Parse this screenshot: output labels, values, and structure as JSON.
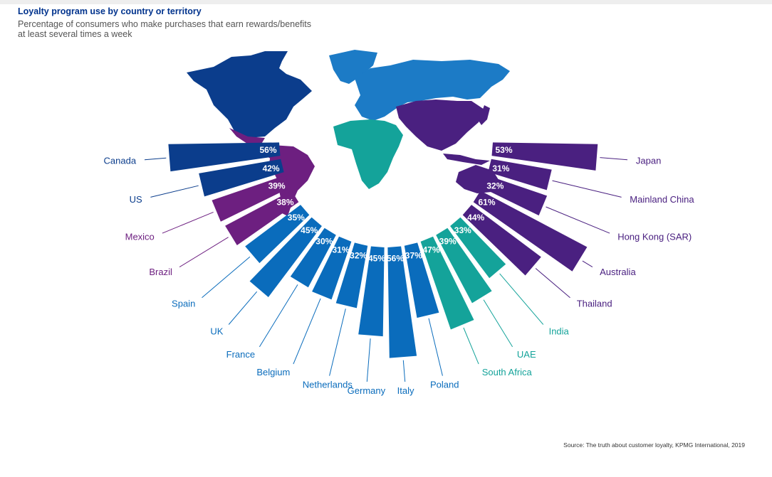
{
  "title": "Loyalty program use by country or territory",
  "subtitle": "Percentage of consumers who make purchases that earn rewards/benefits at least several times a week",
  "source": "Source: The truth about customer loyalty, KPMG International, 2019",
  "colors": {
    "north_america": "#0b3d8c",
    "latin_america": "#6d1f80",
    "europe": "#0a6cbc",
    "middle_east_africa": "#14a39a",
    "asia_pacific": "#4a2080",
    "map_light_blue": "#1c7bc6"
  },
  "chart_data": {
    "type": "bar",
    "layout": "radial",
    "unit": "%",
    "categories": [
      "Canada",
      "US",
      "Mexico",
      "Brazil",
      "Spain",
      "UK",
      "France",
      "Belgium",
      "Netherlands",
      "Germany",
      "Italy",
      "Poland",
      "South Africa",
      "UAE",
      "India",
      "Thailand",
      "Australia",
      "Hong Kong (SAR)",
      "Mainland China",
      "Japan"
    ],
    "values": [
      56,
      42,
      39,
      38,
      35,
      45,
      30,
      31,
      32,
      45,
      56,
      37,
      47,
      39,
      33,
      44,
      61,
      32,
      31,
      53
    ],
    "value_labels": [
      "56%",
      "42%",
      "39%",
      "38%",
      "35%",
      "45%",
      "30%",
      "31%",
      "32%",
      "45%",
      "56%",
      "37%",
      "47%",
      "39%",
      "33%",
      "44%",
      "61%",
      "32%",
      "31%",
      "53%"
    ],
    "regions": [
      "north_america",
      "north_america",
      "latin_america",
      "latin_america",
      "europe",
      "europe",
      "europe",
      "europe",
      "europe",
      "europe",
      "europe",
      "europe",
      "middle_east_africa",
      "middle_east_africa",
      "middle_east_africa",
      "asia_pacific",
      "asia_pacific",
      "asia_pacific",
      "asia_pacific",
      "asia_pacific"
    ],
    "title": "Loyalty program use by country or territory",
    "subtitle": "Percentage of consumers who make purchases that earn rewards/benefits at least several times a week",
    "xlabel": "",
    "ylabel": "",
    "grid": false,
    "legend": "none"
  }
}
